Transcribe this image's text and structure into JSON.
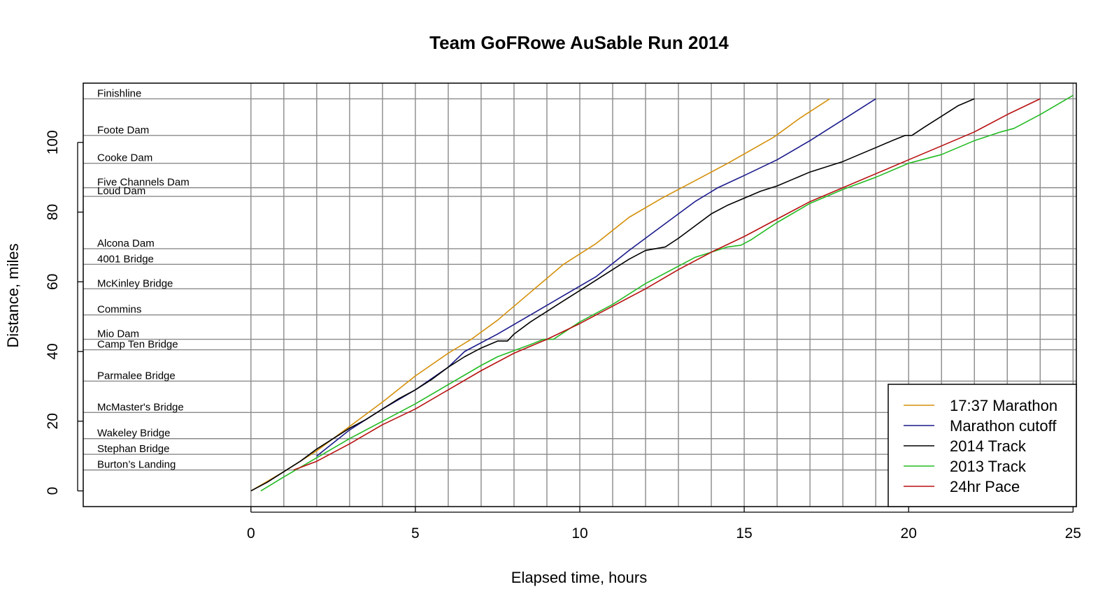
{
  "chart_data": {
    "type": "line",
    "title": "Team GoFRowe AuSable Run 2014",
    "xlabel": "Elapsed time, hours",
    "ylabel": "Distance, miles",
    "xlim": [
      -5.1,
      25.1
    ],
    "ylim": [
      -4.5,
      117
    ],
    "x_ticks": [
      0,
      5,
      10,
      15,
      20,
      25
    ],
    "y_ticks": [
      0,
      20,
      40,
      60,
      80,
      100
    ],
    "vertical_grid_every_hours": 1,
    "grid": true,
    "legend_position": "bottom-right",
    "landmarks": [
      {
        "name": "Finishline",
        "miles": 112.5
      },
      {
        "name": "Foote Dam",
        "miles": 102
      },
      {
        "name": "Cooke Dam",
        "miles": 94
      },
      {
        "name": "Five Channels Dam",
        "miles": 87
      },
      {
        "name": "Loud Dam",
        "miles": 84.5
      },
      {
        "name": "Alcona Dam",
        "miles": 69.5
      },
      {
        "name": "4001 Bridge",
        "miles": 65
      },
      {
        "name": "McKinley Bridge",
        "miles": 58
      },
      {
        "name": "Commins",
        "miles": 50.5
      },
      {
        "name": "Mio Dam",
        "miles": 43.5
      },
      {
        "name": "Camp Ten Bridge",
        "miles": 40.5
      },
      {
        "name": "Parmalee Bridge",
        "miles": 31.5
      },
      {
        "name": "McMaster's Bridge",
        "miles": 22.5
      },
      {
        "name": "Wakeley Bridge",
        "miles": 15
      },
      {
        "name": "Stephan Bridge",
        "miles": 10.5
      },
      {
        "name": "Burton’s Landing",
        "miles": 6
      }
    ],
    "series": [
      {
        "name": "17:37 Marathon",
        "color": "#d4900a",
        "x": [
          0,
          1.0,
          2.0,
          3.0,
          4.0,
          5.0,
          6.0,
          6.7,
          7.5,
          8.5,
          9.5,
          10.5,
          11.5,
          12.5,
          13.5,
          14.5,
          15.9,
          16.7,
          17.6
        ],
        "y": [
          0,
          5.5,
          11.5,
          18.5,
          25.5,
          33,
          39.5,
          43.5,
          49,
          57,
          65,
          71,
          78.5,
          84,
          89,
          94,
          101.5,
          107,
          112.5
        ]
      },
      {
        "name": "Marathon cutoff",
        "color": "#1a1a8c",
        "x": [
          2.0,
          3.0,
          4.0,
          5.0,
          6.0,
          6.5,
          7.5,
          8.5,
          9.5,
          10.5,
          11.5,
          12.5,
          13.5,
          14.2,
          15.0,
          16.0,
          17.0,
          18.0,
          19.0
        ],
        "y": [
          10,
          17.5,
          23.5,
          29,
          35.5,
          40,
          45,
          50.5,
          56,
          61.5,
          69,
          76,
          83,
          87,
          90.5,
          95,
          100.5,
          106.5,
          112.5
        ]
      },
      {
        "name": "2014 Track",
        "color": "#000000",
        "x": [
          0,
          0.5,
          1.0,
          1.5,
          2.0,
          2.5,
          3.0,
          3.5,
          4.0,
          4.5,
          5.0,
          5.5,
          6.0,
          6.5,
          7.0,
          7.5,
          7.8,
          8.0,
          8.5,
          9.0,
          9.5,
          10.0,
          10.5,
          11.0,
          11.5,
          12.0,
          12.3,
          12.6,
          13.0,
          13.5,
          14.0,
          14.5,
          15.0,
          15.5,
          16.0,
          16.5,
          17.0,
          17.5,
          18.0,
          18.5,
          19.0,
          19.5,
          19.9,
          20.1,
          20.5,
          21.0,
          21.5,
          22.0
        ],
        "y": [
          0,
          2.5,
          5.5,
          8.5,
          12,
          15,
          18,
          20.5,
          23.5,
          26.5,
          29,
          32,
          35.5,
          38.5,
          41,
          43,
          43,
          45,
          48.5,
          51.5,
          54.5,
          57.5,
          60.5,
          63.5,
          66.5,
          69,
          69.5,
          70,
          72.5,
          76,
          79.5,
          82,
          84,
          86,
          87.5,
          89.5,
          91.5,
          93,
          94.5,
          96.5,
          98.5,
          100.5,
          102,
          102,
          104.5,
          107.5,
          110.5,
          112.5
        ]
      },
      {
        "name": "2013 Track",
        "color": "#22bb22",
        "x": [
          0.3,
          1.0,
          2.0,
          3.0,
          4.0,
          5.0,
          6.0,
          7.0,
          7.5,
          8.5,
          8.9,
          9.2,
          10.0,
          11.0,
          12.0,
          13.0,
          13.5,
          14.0,
          14.5,
          14.9,
          15.2,
          16.0,
          17.0,
          18.0,
          19.0,
          20.0,
          20.6,
          21.0,
          22.0,
          22.8,
          23.2,
          24.0,
          25.0
        ],
        "y": [
          0,
          4,
          9.5,
          15,
          20,
          25,
          30.5,
          36,
          38.5,
          42,
          43.5,
          43.5,
          48.5,
          53.5,
          59.5,
          64.5,
          67,
          68.5,
          70,
          70.5,
          72,
          77,
          82.5,
          86.5,
          90,
          94,
          95.5,
          96.5,
          100.5,
          103,
          104,
          108,
          113.5
        ]
      },
      {
        "name": "24hr Pace",
        "color": "#b81010",
        "x": [
          1.3,
          2.0,
          3.0,
          4.0,
          5.0,
          6.0,
          7.0,
          8.0,
          9.0,
          10.0,
          11.0,
          12.0,
          13.0,
          14.0,
          15.0,
          16.0,
          17.0,
          18.0,
          19.0,
          20.0,
          21.0,
          22.0,
          23.0,
          24.0
        ],
        "y": [
          6,
          8.5,
          13.5,
          19,
          23.5,
          29,
          34.5,
          39.5,
          43.5,
          48,
          53,
          58,
          63.5,
          68.5,
          73,
          78,
          83,
          87,
          91,
          95,
          99,
          103,
          108,
          112.5
        ]
      }
    ]
  }
}
